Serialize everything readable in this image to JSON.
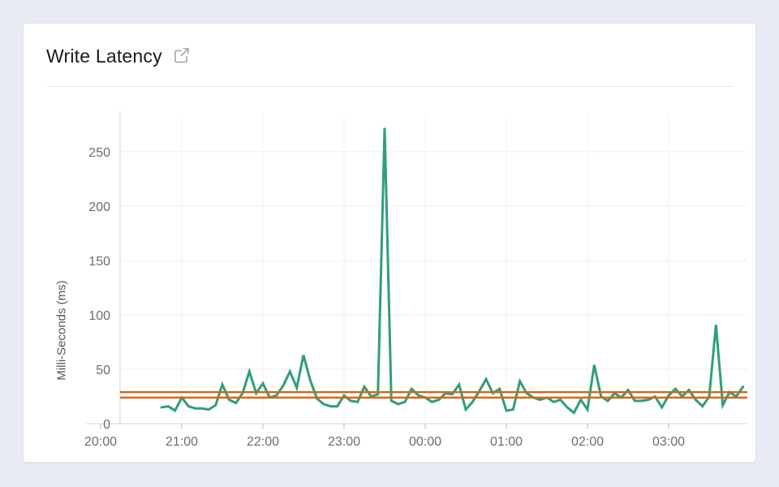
{
  "header": {
    "title": "Write Latency",
    "icon": "external-link-icon"
  },
  "colors": {
    "page_background": "#e8ebf3",
    "card_background": "#ffffff",
    "series_green": "#2f9e7d",
    "reference_orange": "#cf691c",
    "gridline": "#ededed",
    "axis_line": "#d6d6d6",
    "tick_text": "#6d6d6d"
  },
  "chart_data": {
    "type": "line",
    "title": "Write Latency",
    "xlabel": "",
    "ylabel": "Milli-Seconds (ms)",
    "y_ticks": [
      0,
      50,
      100,
      150,
      200,
      250
    ],
    "y_tick_labels": [
      "0",
      "50",
      "100",
      "150",
      "200",
      "250"
    ],
    "x_tick_labels": [
      "20:00",
      "21:00",
      "22:00",
      "23:00",
      "00:00",
      "01:00",
      "02:00",
      "03:00"
    ],
    "ylim": [
      0,
      295
    ],
    "grid": true,
    "legend": "none",
    "sample_interval_minutes": 5,
    "series": [
      {
        "name": "Write Latency",
        "color": "#2f9e7d",
        "times": [
          "20:45",
          "20:50",
          "20:55",
          "21:00",
          "21:05",
          "21:10",
          "21:15",
          "21:20",
          "21:25",
          "21:30",
          "21:35",
          "21:40",
          "21:45",
          "21:50",
          "21:55",
          "22:00",
          "22:05",
          "22:10",
          "22:15",
          "22:20",
          "22:25",
          "22:30",
          "22:35",
          "22:40",
          "22:45",
          "22:50",
          "22:55",
          "23:00",
          "23:05",
          "23:10",
          "23:15",
          "23:20",
          "23:25",
          "23:30",
          "23:35",
          "23:40",
          "23:45",
          "23:50",
          "23:55",
          "00:00",
          "00:05",
          "00:10",
          "00:15",
          "00:20",
          "00:25",
          "00:30",
          "00:35",
          "00:40",
          "00:45",
          "00:50",
          "00:55",
          "01:00",
          "01:05",
          "01:10",
          "01:15",
          "01:20",
          "01:25",
          "01:30",
          "01:35",
          "01:40",
          "01:45",
          "01:50",
          "01:55",
          "02:00",
          "02:05",
          "02:10",
          "02:15",
          "02:20",
          "02:25",
          "02:30",
          "02:35",
          "02:40",
          "02:45",
          "02:50",
          "02:55",
          "03:00",
          "03:05",
          "03:10",
          "03:15",
          "03:20",
          "03:25",
          "03:30",
          "03:35",
          "03:40",
          "03:45",
          "03:50",
          "03:55"
        ],
        "values": [
          15,
          16,
          12,
          24,
          16,
          14,
          14,
          13,
          17,
          36,
          22,
          19,
          28,
          48,
          28,
          37,
          24,
          26,
          35,
          48,
          33,
          63,
          40,
          23,
          18,
          16,
          16,
          26,
          21,
          20,
          34,
          25,
          27,
          272,
          21,
          18,
          20,
          32,
          26,
          24,
          20,
          22,
          28,
          27,
          36,
          13,
          20,
          30,
          41,
          28,
          32,
          12,
          13,
          39,
          28,
          24,
          22,
          24,
          20,
          22,
          15,
          10,
          22,
          13,
          54,
          25,
          21,
          28,
          24,
          31,
          21,
          21,
          22,
          25,
          15,
          26,
          32,
          25,
          31,
          22,
          16,
          25,
          91,
          17,
          29,
          25,
          34
        ]
      }
    ],
    "reference_lines": {
      "name": "threshold-lines",
      "color": "#cf691c",
      "values": [
        29,
        24
      ]
    }
  }
}
